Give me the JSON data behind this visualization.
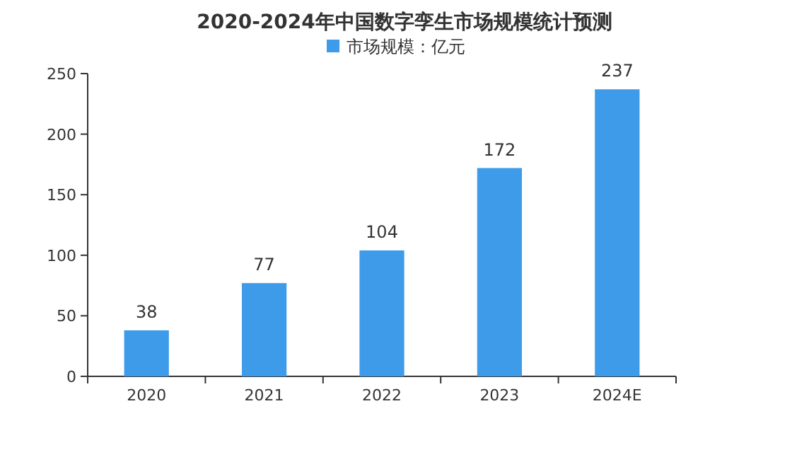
{
  "chart_data": {
    "type": "bar",
    "title": "2020-2024年中国数字孪生市场规模统计预测",
    "categories": [
      "2020",
      "2021",
      "2022",
      "2023",
      "2024E"
    ],
    "series": [
      {
        "name": "市场规模：亿元",
        "color": "#3d9be9",
        "values": [
          38,
          77,
          104,
          172,
          237
        ]
      }
    ],
    "ylim": [
      0,
      250
    ],
    "yticks": [
      0,
      50,
      100,
      150,
      200,
      250
    ],
    "data_labels": true,
    "legend": "top"
  }
}
